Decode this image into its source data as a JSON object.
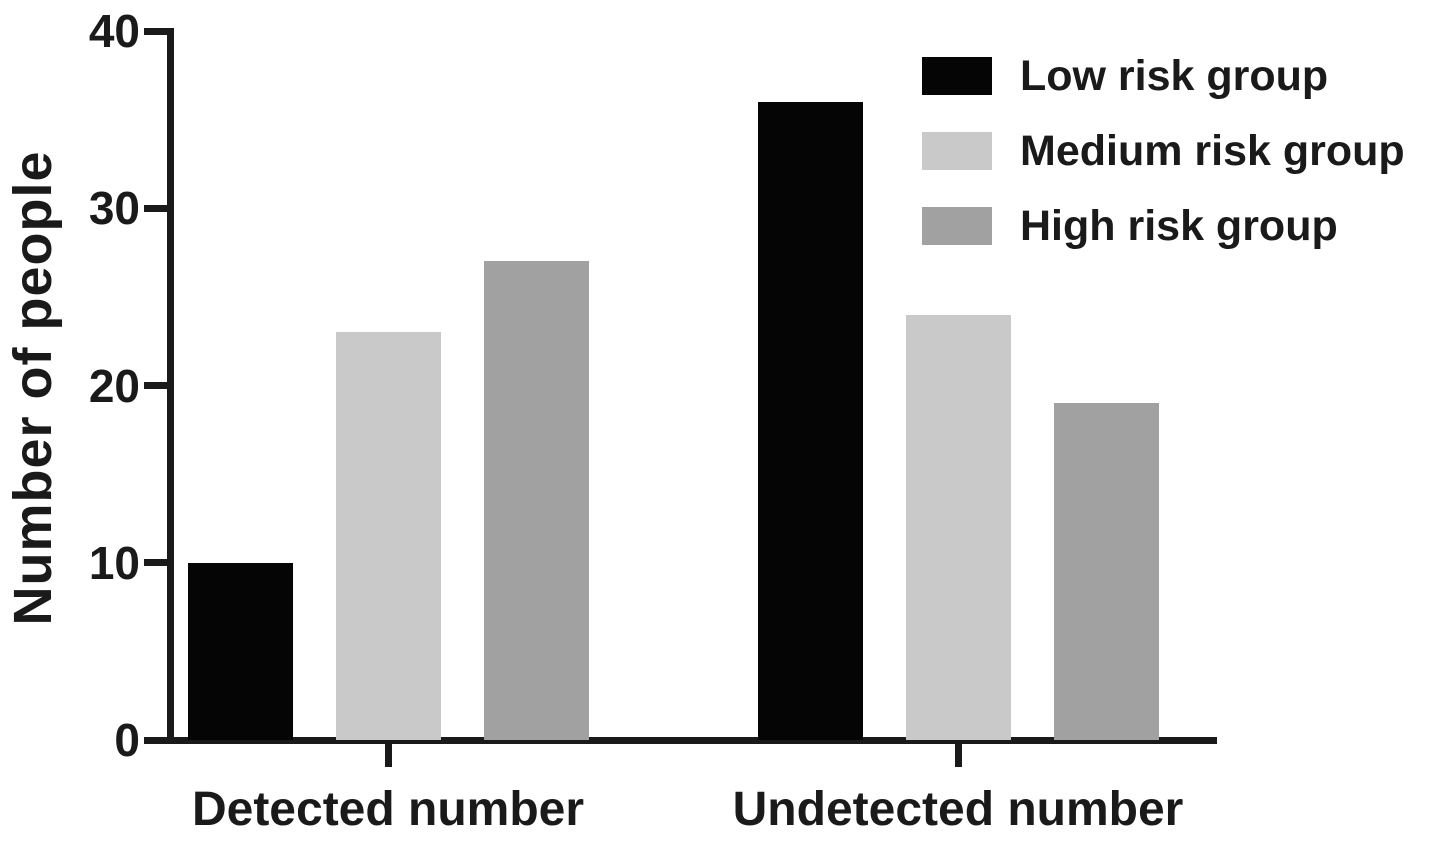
{
  "chart_data": {
    "type": "bar",
    "title": "",
    "ylabel": "Number of people",
    "xlabel": "",
    "ylim": [
      0,
      40
    ],
    "yticks": [
      0,
      10,
      20,
      30,
      40
    ],
    "grid": false,
    "legend_position": "top-right",
    "categories": [
      "Detected number",
      "Undetected number"
    ],
    "series": [
      {
        "name": "Low risk group",
        "color": "#050505",
        "values": [
          10,
          36
        ]
      },
      {
        "name": "Medium risk group",
        "color": "#c9c9c9",
        "values": [
          23,
          24
        ]
      },
      {
        "name": "High risk group",
        "color": "#a1a1a1",
        "values": [
          27,
          19
        ]
      }
    ],
    "colors": {
      "axis": "#1a1a1a",
      "text": "#1a1a1a",
      "background": "#ffffff"
    }
  }
}
